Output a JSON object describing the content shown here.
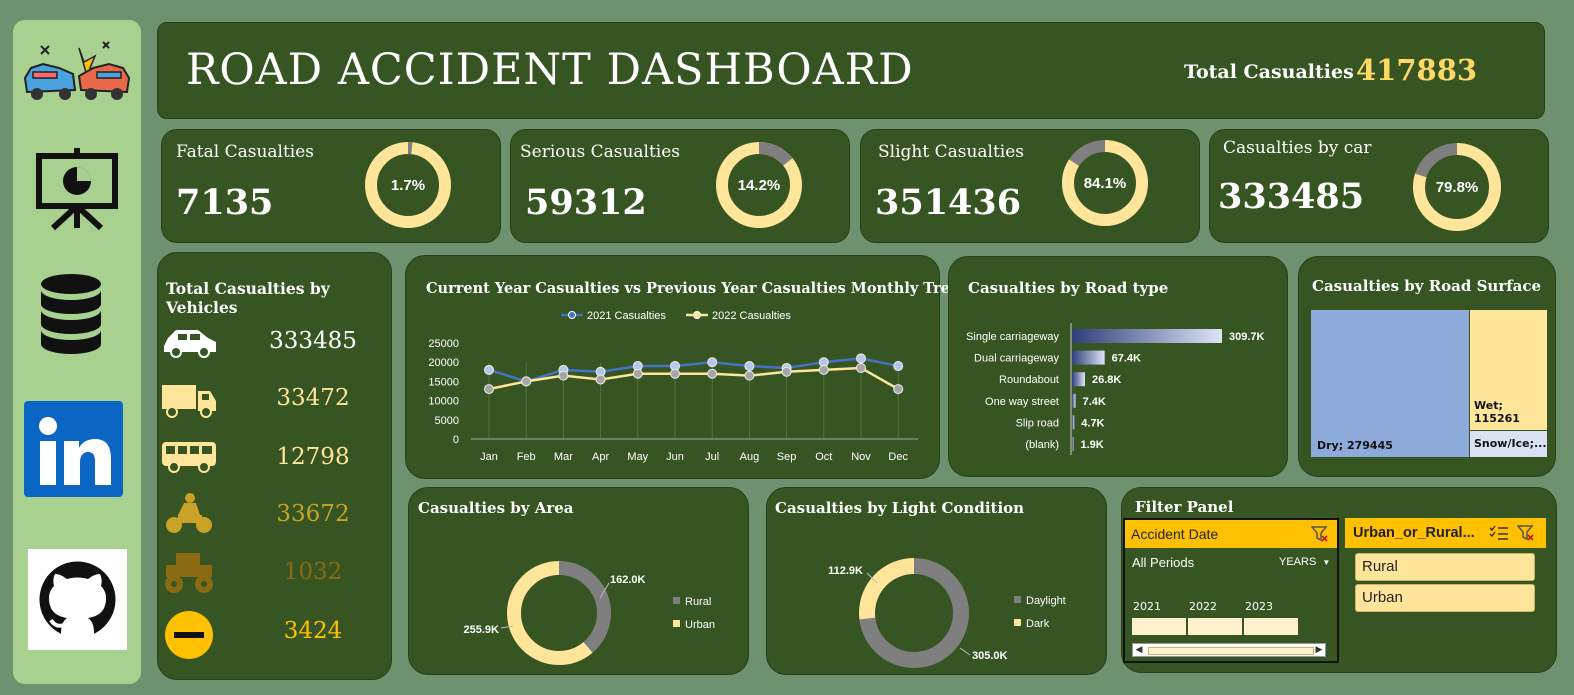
{
  "header": {
    "title": "ROAD ACCIDENT DASHBOARD",
    "total_label": "Total Casualties",
    "total_value": "417883"
  },
  "sidebar": {
    "items": [
      {
        "name": "car-crash-icon"
      },
      {
        "name": "presentation-icon"
      },
      {
        "name": "database-icon"
      },
      {
        "name": "linkedin-icon"
      },
      {
        "name": "github-icon"
      }
    ]
  },
  "kpis": [
    {
      "title": "Fatal Casualties",
      "value": "7135",
      "pct": "1.7%",
      "fraction": 0.017
    },
    {
      "title": "Serious Casualties",
      "value": "59312",
      "pct": "14.2%",
      "fraction": 0.142
    },
    {
      "title": "Slight Casualties",
      "value": "351436",
      "pct": "84.1%",
      "fraction": 0.841
    },
    {
      "title": "Casualties by car",
      "value": "333485",
      "pct": "79.8%",
      "fraction": 0.798
    }
  ],
  "vehicles": {
    "title": "Total Casualties by Vehicles",
    "items": [
      {
        "icon": "car-icon",
        "value": "333485",
        "color": "#ffffff"
      },
      {
        "icon": "truck-icon",
        "value": "33472",
        "color": "#ffe59a"
      },
      {
        "icon": "bus-icon",
        "value": "12798",
        "color": "#ffe59a"
      },
      {
        "icon": "motorbike-icon",
        "value": "33672",
        "color": "#c9a227"
      },
      {
        "icon": "tractor-icon",
        "value": "1032",
        "color": "#8a6b14"
      },
      {
        "icon": "other-vehicle-icon",
        "value": "3424",
        "color": "#ffc000"
      }
    ]
  },
  "trend": {
    "title": "Current Year Casualties vs Previous Year Casualties Monthly Trend",
    "chart_data": {
      "type": "line",
      "x": [
        "Jan",
        "Feb",
        "Mar",
        "Apr",
        "May",
        "Jun",
        "Jul",
        "Aug",
        "Sep",
        "Oct",
        "Nov",
        "Dec"
      ],
      "series": [
        {
          "name": "2021 Casualties",
          "color": "#4472c4",
          "values": [
            18000,
            15000,
            18000,
            17500,
            19000,
            19000,
            20000,
            19000,
            18500,
            20000,
            21000,
            19000
          ]
        },
        {
          "name": "2022 Casualties",
          "color": "#ffe59a",
          "values": [
            13000,
            15000,
            16500,
            15500,
            17000,
            17000,
            17000,
            16500,
            17500,
            18000,
            18500,
            13000
          ]
        }
      ],
      "yticks": [
        "25000",
        "20000",
        "15000",
        "10000",
        "5000",
        "0"
      ],
      "ylim": [
        0,
        25000
      ]
    }
  },
  "road_type": {
    "title": "Casualties by Road type",
    "chart_data": {
      "type": "bar",
      "categories": [
        "Single carriageway",
        "Dual carriageway",
        "Roundabout",
        "One way street",
        "Slip road",
        "(blank)"
      ],
      "values": [
        309.7,
        67.4,
        26.8,
        7.4,
        4.7,
        1.9
      ],
      "labels": [
        "309.7K",
        "67.4K",
        "26.8K",
        "7.4K",
        "4.7K",
        "1.9K"
      ]
    }
  },
  "road_surface": {
    "title": "Casualties by Road Surface",
    "chart_data": {
      "type": "treemap",
      "categories": [
        "Dry",
        "Wet",
        "Snow/Ice;..."
      ],
      "values": [
        279445,
        115261,
        null
      ],
      "labels": [
        "Dry; 279445",
        "Wet; 115261",
        "Snow/Ice;..."
      ],
      "colors": [
        "#8eaadb",
        "#ffe59a",
        "#d9e2f3"
      ]
    }
  },
  "area": {
    "title": "Casualties by Area",
    "chart_data": {
      "type": "pie",
      "categories": [
        "Rural",
        "Urban"
      ],
      "values": [
        162.0,
        255.9
      ],
      "labels": [
        "162.0K",
        "255.9K"
      ],
      "colors": [
        "#7f7f7f",
        "#ffe59a"
      ]
    }
  },
  "light": {
    "title": "Casualties by Light Condition",
    "chart_data": {
      "type": "pie",
      "categories": [
        "Daylight",
        "Dark"
      ],
      "values": [
        305.0,
        112.9
      ],
      "labels": [
        "305.0K",
        "112.9K"
      ],
      "colors": [
        "#7f7f7f",
        "#ffe59a"
      ]
    }
  },
  "filter": {
    "title": "Filter Panel",
    "date_slicer": {
      "title": "Accident Date",
      "period": "All Periods",
      "level": "YEARS",
      "years": [
        "2021",
        "2022",
        "2023"
      ]
    },
    "area_slicer": {
      "title": "Urban_or_Rural...",
      "options": [
        "Rural",
        "Urban"
      ]
    }
  }
}
